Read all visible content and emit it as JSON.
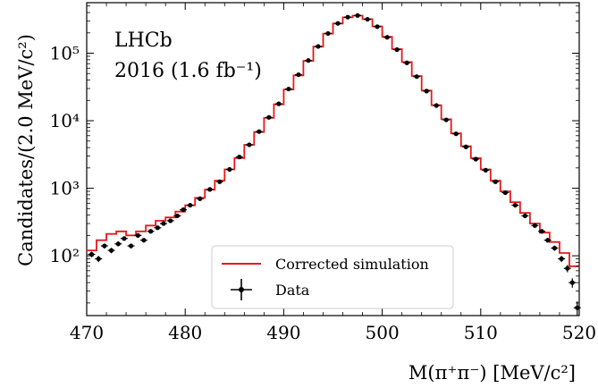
{
  "chart_data": {
    "type": "histogram",
    "experiment_label": "LHCb",
    "dataset_label": "2016 (1.6 fb⁻¹)",
    "xlabel": "M(π⁺π⁻) [MeV/c²]",
    "ylabel": "Candidates/(2.0 MeV/c²)",
    "xlim": [
      470,
      520
    ],
    "ylim": [
      13,
      560000
    ],
    "yscale": "log",
    "xticks": [
      470,
      480,
      490,
      500,
      510,
      520
    ],
    "xtick_labels": [
      "470",
      "480",
      "490",
      "500",
      "510",
      "520"
    ],
    "yticks": [
      100,
      1000,
      10000,
      100000
    ],
    "ytick_labels": [
      "10²",
      "10³",
      "10⁴",
      "10⁵"
    ],
    "legend": {
      "position": "lower center",
      "entries": [
        {
          "label": "Corrected simulation",
          "color": "#e41a1c",
          "style": "line"
        },
        {
          "label": "Data",
          "color": "#000000",
          "style": "errorbar"
        }
      ]
    },
    "series": [
      {
        "name": "Corrected simulation",
        "style": "step",
        "color": "#e41a1c",
        "x": [
          470,
          471,
          472,
          473,
          474,
          475,
          476,
          477,
          478,
          479,
          480,
          481,
          482,
          483,
          484,
          485,
          486,
          487,
          488,
          489,
          490,
          491,
          492,
          493,
          494,
          495,
          496,
          497,
          498,
          499,
          500,
          501,
          502,
          503,
          504,
          505,
          506,
          507,
          508,
          509,
          510,
          511,
          512,
          513,
          514,
          515,
          516,
          517,
          518,
          519,
          520
        ],
        "y": [
          120,
          170,
          210,
          230,
          200,
          230,
          280,
          330,
          370,
          450,
          560,
          720,
          950,
          1300,
          1900,
          2800,
          4400,
          6800,
          11000,
          17500,
          29000,
          47000,
          77000,
          125000,
          195000,
          275000,
          340000,
          360000,
          320000,
          250000,
          175000,
          115000,
          74000,
          46000,
          28000,
          17000,
          10500,
          6500,
          4200,
          2800,
          1900,
          1300,
          900,
          620,
          430,
          300,
          220,
          160,
          110,
          70,
          45
        ]
      },
      {
        "name": "Data",
        "style": "errorbar",
        "color": "#000000",
        "x": [
          470.5,
          471.2,
          471.8,
          472.5,
          473.2,
          473.8,
          474.5,
          475.2,
          475.8,
          476.5,
          477.2,
          477.8,
          478.5,
          479.2,
          479.8,
          480.5,
          481.5,
          482.5,
          483.5,
          484.5,
          485.5,
          486.5,
          487.5,
          488.5,
          489.5,
          490.5,
          491.5,
          492.5,
          493.5,
          494.5,
          495.5,
          496.5,
          497.5,
          498.5,
          499.5,
          500.5,
          501.5,
          502.5,
          503.5,
          504.5,
          505.5,
          506.5,
          507.5,
          508.5,
          509.5,
          510.5,
          511.5,
          512.5,
          513.5,
          514.5,
          515.5,
          516.2,
          516.8,
          517.5,
          518.2,
          518.8,
          519.3,
          519.8
        ],
        "y": [
          105,
          90,
          140,
          120,
          150,
          180,
          140,
          200,
          170,
          230,
          260,
          300,
          330,
          390,
          480,
          560,
          700,
          960,
          1250,
          1900,
          2900,
          4400,
          6900,
          11200,
          17800,
          29500,
          48000,
          78000,
          126000,
          196000,
          276000,
          342000,
          362000,
          318000,
          247000,
          172000,
          113000,
          72000,
          45000,
          27500,
          16800,
          10300,
          6400,
          4100,
          2700,
          1850,
          1250,
          860,
          560,
          390,
          280,
          230,
          170,
          130,
          90,
          65,
          40,
          17
        ]
      }
    ]
  }
}
